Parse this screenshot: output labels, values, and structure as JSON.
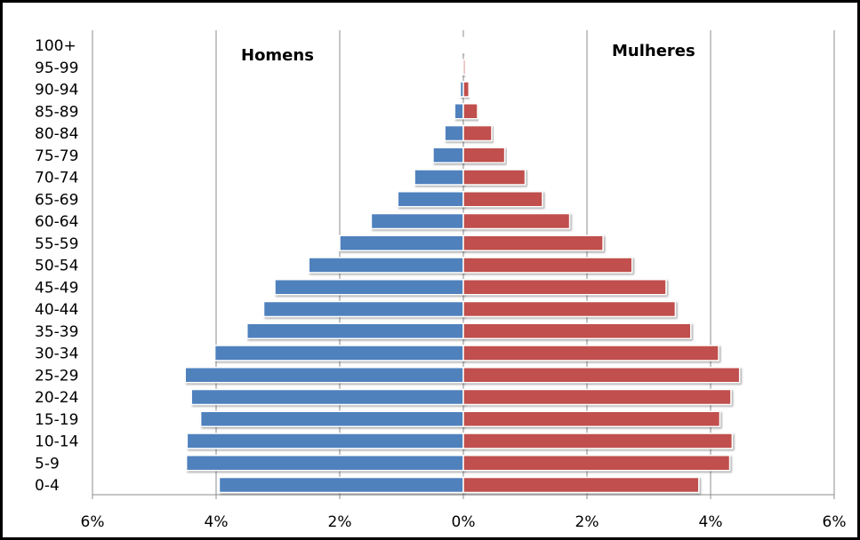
{
  "chart_data": {
    "type": "bar",
    "orientation": "horizontal",
    "subtype": "population-pyramid",
    "categories": [
      "0-4",
      "5-9",
      "10-14",
      "15-19",
      "20-24",
      "25-29",
      "30-34",
      "35-39",
      "40-44",
      "45-49",
      "50-54",
      "55-59",
      "60-64",
      "65-69",
      "70-74",
      "75-79",
      "80-84",
      "85-89",
      "90-94",
      "95-99",
      "100+"
    ],
    "series": [
      {
        "name": "Homens",
        "color": "#4f81bd",
        "values": [
          3.95,
          4.48,
          4.47,
          4.25,
          4.4,
          4.5,
          4.02,
          3.5,
          3.23,
          3.05,
          2.5,
          2.0,
          1.49,
          1.06,
          0.79,
          0.49,
          0.3,
          0.14,
          0.05,
          0.02,
          0.01
        ]
      },
      {
        "name": "Mulheres",
        "color": "#c0504d",
        "values": [
          3.81,
          4.31,
          4.35,
          4.15,
          4.33,
          4.47,
          4.13,
          3.68,
          3.43,
          3.28,
          2.73,
          2.26,
          1.72,
          1.28,
          1.0,
          0.67,
          0.46,
          0.23,
          0.09,
          0.03,
          0.02
        ]
      }
    ],
    "xticks": [
      "6%",
      "4%",
      "2%",
      "0%",
      "2%",
      "4%",
      "6%"
    ],
    "xlim": [
      -6,
      6
    ],
    "unit": "%",
    "grid": "vertical",
    "labels": {
      "left": "Homens",
      "right": "Mulheres"
    }
  }
}
